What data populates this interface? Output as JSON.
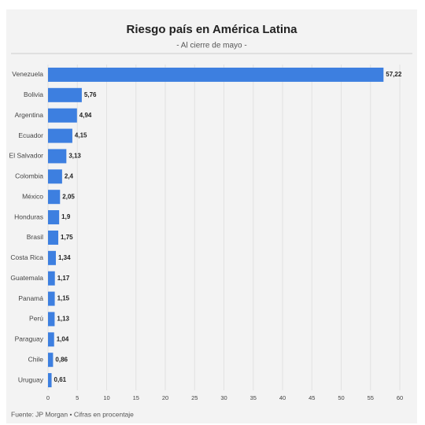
{
  "chart_data": {
    "type": "barh",
    "title": "Riesgo país en América Latina",
    "subtitle": "- Al cierre de mayo -",
    "source": "Fuente: JP Morgan • Cifras en procentaje",
    "categories": [
      "Venezuela",
      "Bolivia",
      "Argentina",
      "Ecuador",
      "El Salvador",
      "Colombia",
      "México",
      "Honduras",
      "Brasil",
      "Costa Rica",
      "Guatemala",
      "Panamá",
      "Perú",
      "Paraguay",
      "Chile",
      "Uruguay"
    ],
    "values": [
      57.22,
      5.76,
      4.94,
      4.15,
      3.13,
      2.4,
      2.05,
      1.9,
      1.75,
      1.34,
      1.17,
      1.15,
      1.13,
      1.04,
      0.86,
      0.61
    ],
    "value_labels": [
      "57,22",
      "5,76",
      "4,94",
      "4,15",
      "3,13",
      "2,4",
      "2,05",
      "1,9",
      "1,75",
      "1,34",
      "1,17",
      "1,15",
      "1,13",
      "1,04",
      "0,86",
      "0,61"
    ],
    "color": "#3d7fe0",
    "xlim": [
      0,
      60
    ],
    "xticks": [
      0,
      5,
      10,
      15,
      20,
      25,
      30,
      35,
      40,
      45,
      50,
      55,
      60
    ],
    "grid": true
  }
}
